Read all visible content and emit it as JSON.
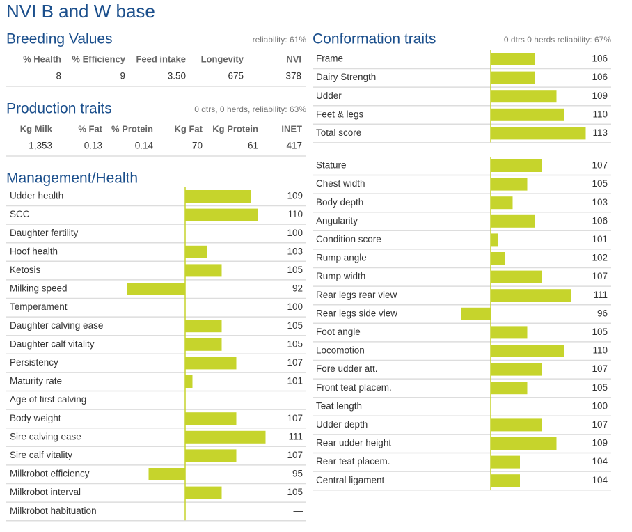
{
  "title": "NVI B and W base",
  "breeding_values": {
    "heading": "Breeding Values",
    "reliability": "reliability: 61%",
    "columns": [
      "% Health",
      "% Efficiency",
      "Feed intake",
      "Longevity",
      "NVI"
    ],
    "row": [
      "8",
      "9",
      "3.50",
      "675",
      "378"
    ]
  },
  "production_traits": {
    "heading": "Production traits",
    "reliability": "0 dtrs, 0 herds, reliability: 63%",
    "columns": [
      "Kg Milk",
      "% Fat",
      "% Protein",
      "Kg Fat",
      "Kg Protein",
      "INET"
    ],
    "row": [
      "1,353",
      "0.13",
      "0.14",
      "70",
      "61",
      "417"
    ]
  },
  "management_health": {
    "heading": "Management/Health",
    "baseline": 100,
    "rows": [
      {
        "trait": "Udder health",
        "value": 109
      },
      {
        "trait": "SCC",
        "value": 110
      },
      {
        "trait": "Daughter fertility",
        "value": 100
      },
      {
        "trait": "Hoof health",
        "value": 103
      },
      {
        "trait": "Ketosis",
        "value": 105
      },
      {
        "trait": "Milking speed",
        "value": 92
      },
      {
        "trait": "Temperament",
        "value": 100
      },
      {
        "trait": "Daughter calving ease",
        "value": 105
      },
      {
        "trait": "Daughter calf vitality",
        "value": 105
      },
      {
        "trait": "Persistency",
        "value": 107
      },
      {
        "trait": "Maturity rate",
        "value": 101
      },
      {
        "trait": "Age of first calving",
        "value": null,
        "label": "—"
      },
      {
        "trait": "Body weight",
        "value": 107
      },
      {
        "trait": "Sire calving ease",
        "value": 111
      },
      {
        "trait": "Sire calf vitality",
        "value": 107
      },
      {
        "trait": "Milkrobot efficiency",
        "value": 95
      },
      {
        "trait": "Milkrobot interval",
        "value": 105
      },
      {
        "trait": "Milkrobot habituation",
        "value": null,
        "label": "—"
      }
    ]
  },
  "conformation": {
    "heading": "Conformation traits",
    "reliability": "0 dtrs 0 herds reliability: 67%",
    "baseline": 100,
    "groups": [
      [
        {
          "trait": "Frame",
          "value": 106
        },
        {
          "trait": "Dairy Strength",
          "value": 106
        },
        {
          "trait": "Udder",
          "value": 109
        },
        {
          "trait": "Feet & legs",
          "value": 110
        },
        {
          "trait": "Total score",
          "value": 113
        }
      ],
      [
        {
          "trait": "Stature",
          "value": 107
        },
        {
          "trait": "Chest width",
          "value": 105
        },
        {
          "trait": "Body depth",
          "value": 103
        },
        {
          "trait": "Angularity",
          "value": 106
        },
        {
          "trait": "Condition score",
          "value": 101
        },
        {
          "trait": "Rump angle",
          "value": 102
        },
        {
          "trait": "Rump width",
          "value": 107
        },
        {
          "trait": "Rear legs rear view",
          "value": 111
        },
        {
          "trait": "Rear legs side view",
          "value": 96
        },
        {
          "trait": "Foot angle",
          "value": 105
        },
        {
          "trait": "Locomotion",
          "value": 110
        },
        {
          "trait": "Fore udder att.",
          "value": 107
        },
        {
          "trait": "Front teat placem.",
          "value": 105
        },
        {
          "trait": "Teat length",
          "value": 100
        },
        {
          "trait": "Udder depth",
          "value": 107
        },
        {
          "trait": "Rear udder height",
          "value": 109
        },
        {
          "trait": "Rear teat placem.",
          "value": 104
        },
        {
          "trait": "Central ligament",
          "value": 104
        }
      ]
    ]
  }
}
